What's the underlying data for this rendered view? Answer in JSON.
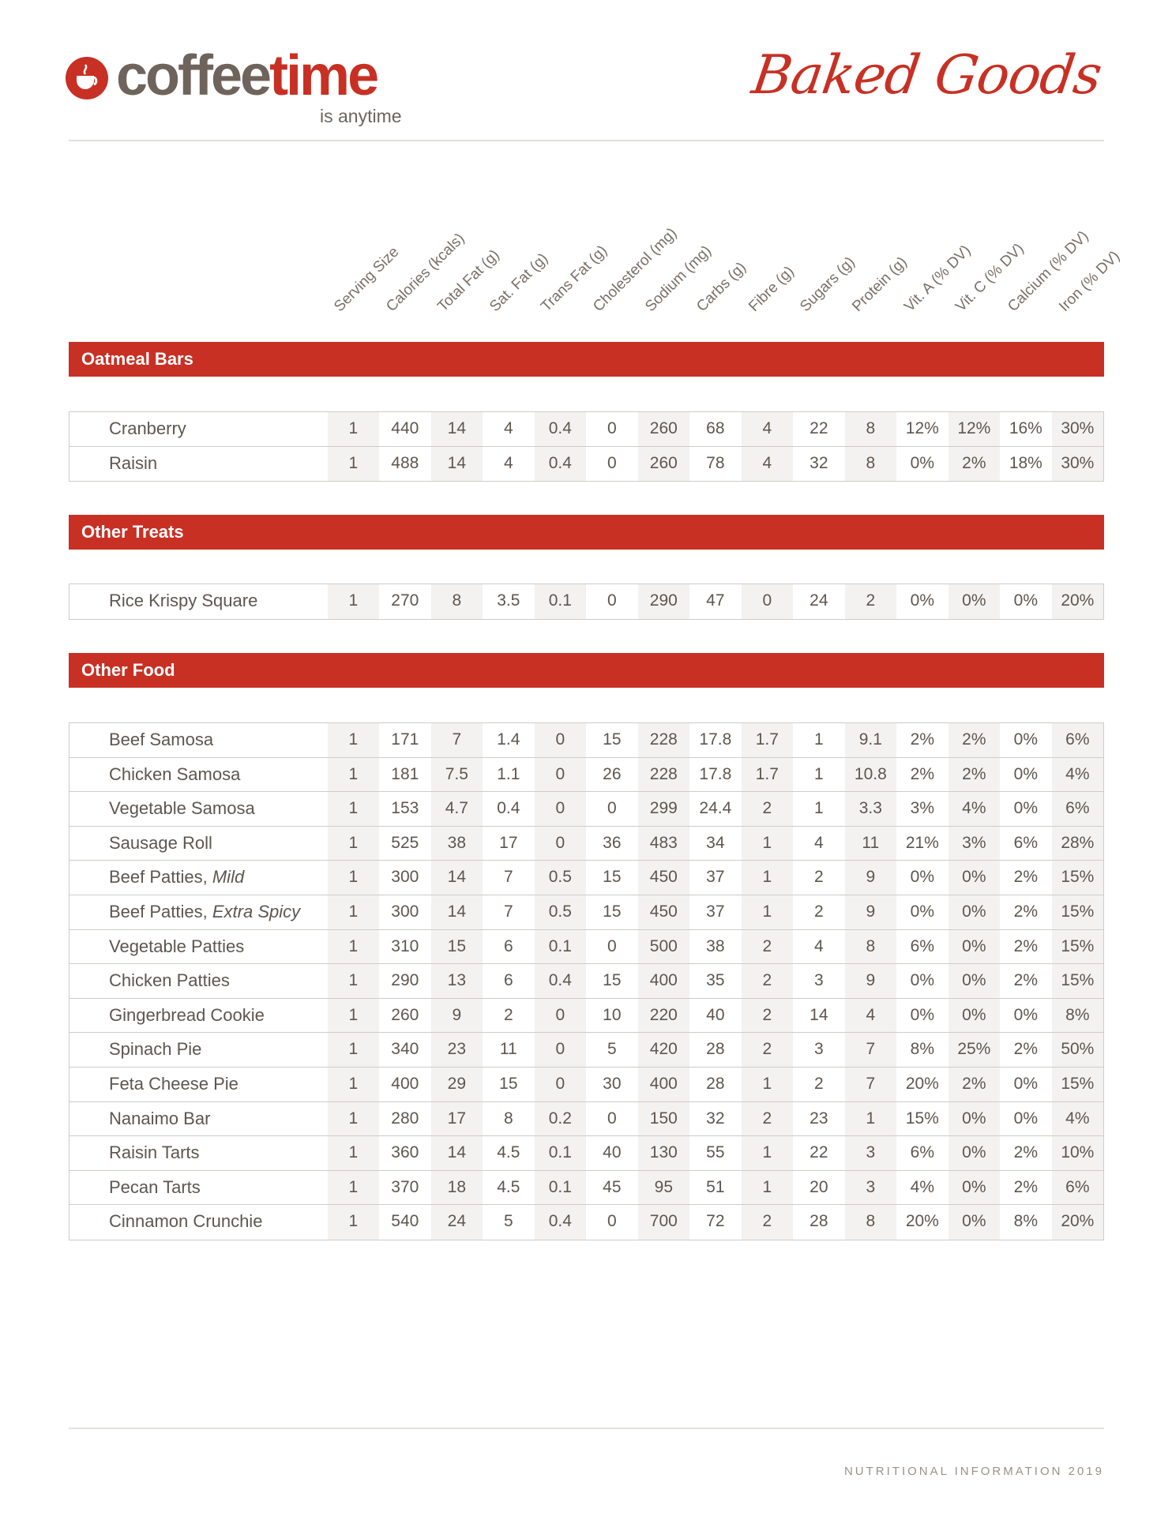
{
  "logo": {
    "word_1": "coffee",
    "word_2": "time",
    "tagline": "is anytime"
  },
  "title": "Baked Goods",
  "columns": [
    "Serving Size",
    "Calories (kcals)",
    "Total Fat (g)",
    "Sat. Fat (g)",
    "Trans Fat (g)",
    "Cholesterol (mg)",
    "Sodium (mg)",
    "Carbs (g)",
    "Fibre (g)",
    "Sugars (g)",
    "Protein (g)",
    "Vit. A (% DV)",
    "Vit. C (% DV)",
    "Calcium (% DV)",
    "Iron (% DV)"
  ],
  "sections": [
    {
      "title": "Oatmeal Bars",
      "rows": [
        {
          "name": "Cranberry",
          "values": [
            "1",
            "440",
            "14",
            "4",
            "0.4",
            "0",
            "260",
            "68",
            "4",
            "22",
            "8",
            "12%",
            "12%",
            "16%",
            "30%"
          ]
        },
        {
          "name": "Raisin",
          "values": [
            "1",
            "488",
            "14",
            "4",
            "0.4",
            "0",
            "260",
            "78",
            "4",
            "32",
            "8",
            "0%",
            "2%",
            "18%",
            "30%"
          ]
        }
      ]
    },
    {
      "title": "Other Treats",
      "rows": [
        {
          "name": "Rice Krispy Square",
          "values": [
            "1",
            "270",
            "8",
            "3.5",
            "0.1",
            "0",
            "290",
            "47",
            "0",
            "24",
            "2",
            "0%",
            "0%",
            "0%",
            "20%"
          ]
        }
      ]
    },
    {
      "title": "Other Food",
      "rows": [
        {
          "name": "Beef Samosa",
          "values": [
            "1",
            "171",
            "7",
            "1.4",
            "0",
            "15",
            "228",
            "17.8",
            "1.7",
            "1",
            "9.1",
            "2%",
            "2%",
            "0%",
            "6%"
          ]
        },
        {
          "name": "Chicken Samosa",
          "values": [
            "1",
            "181",
            "7.5",
            "1.1",
            "0",
            "26",
            "228",
            "17.8",
            "1.7",
            "1",
            "10.8",
            "2%",
            "2%",
            "0%",
            "4%"
          ]
        },
        {
          "name": "Vegetable Samosa",
          "values": [
            "1",
            "153",
            "4.7",
            "0.4",
            "0",
            "0",
            "299",
            "24.4",
            "2",
            "1",
            "3.3",
            "3%",
            "4%",
            "0%",
            "6%"
          ]
        },
        {
          "name": "Sausage Roll",
          "values": [
            "1",
            "525",
            "38",
            "17",
            "0",
            "36",
            "483",
            "34",
            "1",
            "4",
            "11",
            "21%",
            "3%",
            "6%",
            "28%"
          ]
        },
        {
          "name": "Beef Patties, ",
          "variant": "Mild",
          "values": [
            "1",
            "300",
            "14",
            "7",
            "0.5",
            "15",
            "450",
            "37",
            "1",
            "2",
            "9",
            "0%",
            "0%",
            "2%",
            "15%"
          ]
        },
        {
          "name": "Beef Patties, ",
          "variant": "Extra Spicy",
          "values": [
            "1",
            "300",
            "14",
            "7",
            "0.5",
            "15",
            "450",
            "37",
            "1",
            "2",
            "9",
            "0%",
            "0%",
            "2%",
            "15%"
          ]
        },
        {
          "name": "Vegetable Patties",
          "values": [
            "1",
            "310",
            "15",
            "6",
            "0.1",
            "0",
            "500",
            "38",
            "2",
            "4",
            "8",
            "6%",
            "0%",
            "2%",
            "15%"
          ]
        },
        {
          "name": "Chicken Patties",
          "values": [
            "1",
            "290",
            "13",
            "6",
            "0.4",
            "15",
            "400",
            "35",
            "2",
            "3",
            "9",
            "0%",
            "0%",
            "2%",
            "15%"
          ]
        },
        {
          "name": "Gingerbread Cookie",
          "values": [
            "1",
            "260",
            "9",
            "2",
            "0",
            "10",
            "220",
            "40",
            "2",
            "14",
            "4",
            "0%",
            "0%",
            "0%",
            "8%"
          ]
        },
        {
          "name": "Spinach Pie",
          "values": [
            "1",
            "340",
            "23",
            "11",
            "0",
            "5",
            "420",
            "28",
            "2",
            "3",
            "7",
            "8%",
            "25%",
            "2%",
            "50%"
          ]
        },
        {
          "name": "Feta Cheese Pie",
          "values": [
            "1",
            "400",
            "29",
            "15",
            "0",
            "30",
            "400",
            "28",
            "1",
            "2",
            "7",
            "20%",
            "2%",
            "0%",
            "15%"
          ]
        },
        {
          "name": "Nanaimo Bar",
          "values": [
            "1",
            "280",
            "17",
            "8",
            "0.2",
            "0",
            "150",
            "32",
            "2",
            "23",
            "1",
            "15%",
            "0%",
            "0%",
            "4%"
          ]
        },
        {
          "name": "Raisin Tarts",
          "values": [
            "1",
            "360",
            "14",
            "4.5",
            "0.1",
            "40",
            "130",
            "55",
            "1",
            "22",
            "3",
            "6%",
            "0%",
            "2%",
            "10%"
          ]
        },
        {
          "name": "Pecan Tarts",
          "values": [
            "1",
            "370",
            "18",
            "4.5",
            "0.1",
            "45",
            "95",
            "51",
            "1",
            "20",
            "3",
            "4%",
            "0%",
            "2%",
            "6%"
          ]
        },
        {
          "name": "Cinnamon Crunchie",
          "values": [
            "1",
            "540",
            "24",
            "5",
            "0.4",
            "0",
            "700",
            "72",
            "2",
            "28",
            "8",
            "20%",
            "0%",
            "8%",
            "20%"
          ]
        }
      ]
    }
  ],
  "footer": "NUTRITIONAL INFORMATION 2019",
  "colors": {
    "brand_red": "#c83024",
    "brand_brown": "#6e645c",
    "column_shade": "#f4f2f0"
  }
}
